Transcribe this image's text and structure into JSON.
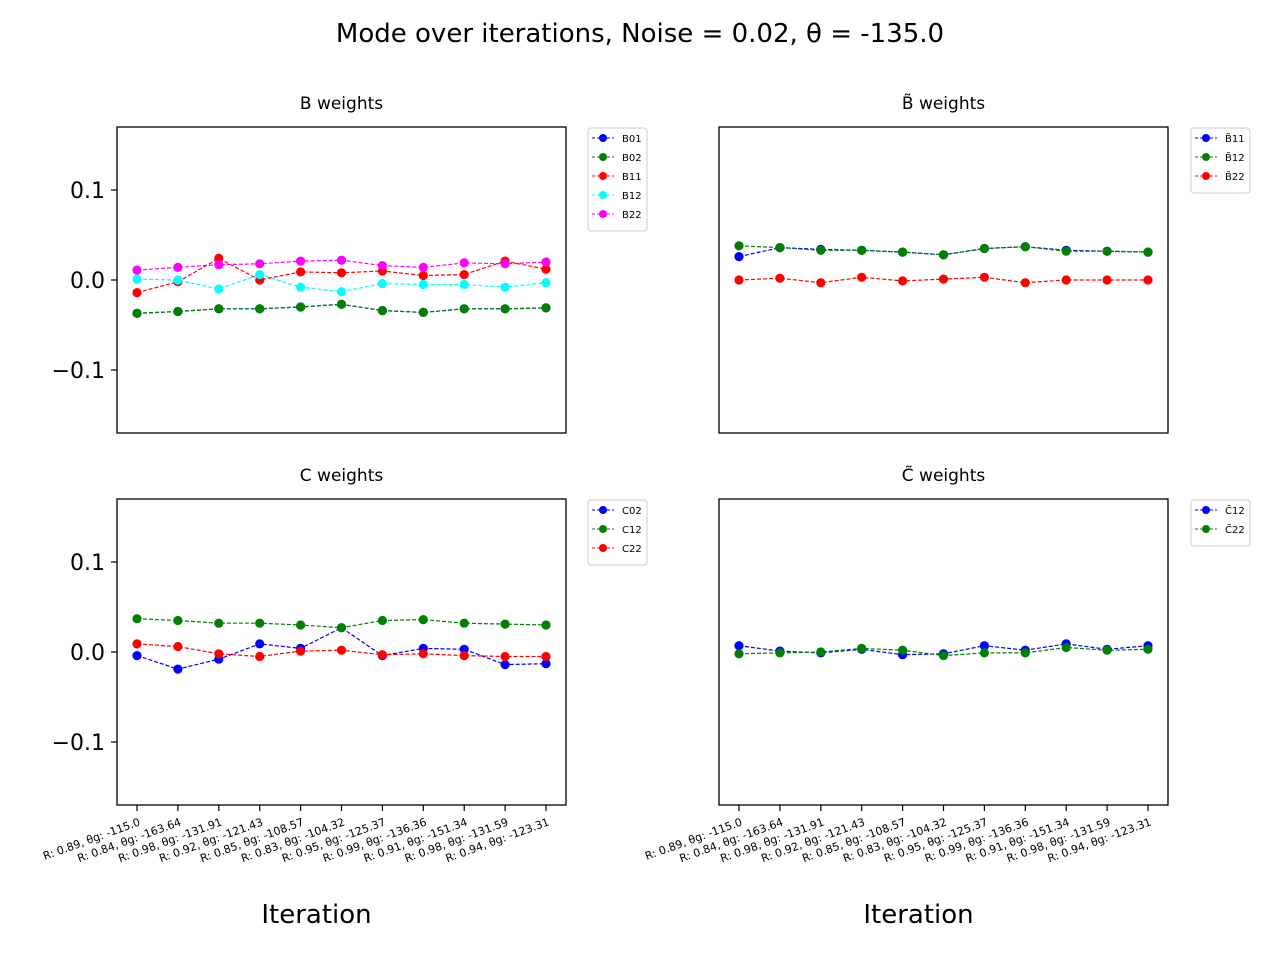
{
  "figure": {
    "title": "Mode over iterations, Noise = 0.02, θ = -135.0"
  },
  "chart_data": [
    {
      "type": "line",
      "title": "B weights",
      "xlabel": "",
      "ylabel": "",
      "ylim": [
        -0.17,
        0.17
      ],
      "yticks": [
        "0.1",
        "0.0",
        "−0.1"
      ],
      "x": [
        "R: 0.89, θg: -115.0",
        "R: 0.84, θg: -163.64",
        "R: 0.98, θg: -131.91",
        "R: 0.92, θg: -121.43",
        "R: 0.85, θg: -108.57",
        "R: 0.83, θg: -104.32",
        "R: 0.95, θg: -125.37",
        "R: 0.99, θg: -136.36",
        "R: 0.91, θg: -151.34",
        "R: 0.98, θg: -131.59",
        "R: 0.94, θg: -123.31"
      ],
      "legend": "outside-right",
      "series": [
        {
          "name": "B01",
          "color": "#0000ff",
          "values": [
            -0.037,
            -0.035,
            -0.032,
            -0.032,
            -0.03,
            -0.027,
            -0.034,
            -0.036,
            -0.032,
            -0.032,
            -0.031
          ]
        },
        {
          "name": "B02",
          "color": "#008000",
          "values": [
            -0.037,
            -0.035,
            -0.032,
            -0.032,
            -0.03,
            -0.027,
            -0.034,
            -0.036,
            -0.032,
            -0.032,
            -0.031
          ]
        },
        {
          "name": "B11",
          "color": "#ff0000",
          "values": [
            -0.014,
            -0.002,
            0.024,
            0.0,
            0.009,
            0.008,
            0.01,
            0.005,
            0.006,
            0.021,
            0.012
          ]
        },
        {
          "name": "B12",
          "color": "#00ffff",
          "values": [
            0.001,
            0.0,
            -0.01,
            0.006,
            -0.008,
            -0.013,
            -0.004,
            -0.005,
            -0.005,
            -0.008,
            -0.003
          ]
        },
        {
          "name": "B22",
          "color": "#ff00ff",
          "values": [
            0.011,
            0.014,
            0.017,
            0.018,
            0.021,
            0.022,
            0.016,
            0.014,
            0.019,
            0.018,
            0.02
          ]
        }
      ]
    },
    {
      "type": "line",
      "title": "B̃ weights",
      "xlabel": "",
      "ylabel": "",
      "ylim": [
        -0.17,
        0.17
      ],
      "yticks": [],
      "x": [
        "R: 0.89, θg: -115.0",
        "R: 0.84, θg: -163.64",
        "R: 0.98, θg: -131.91",
        "R: 0.92, θg: -121.43",
        "R: 0.85, θg: -108.57",
        "R: 0.83, θg: -104.32",
        "R: 0.95, θg: -125.37",
        "R: 0.99, θg: -136.36",
        "R: 0.91, θg: -151.34",
        "R: 0.98, θg: -131.59",
        "R: 0.94, θg: -123.31"
      ],
      "legend": "outside-right",
      "series": [
        {
          "name": "B̃11",
          "color": "#0000ff",
          "values": [
            0.026,
            0.036,
            0.034,
            0.033,
            0.031,
            0.028,
            0.035,
            0.037,
            0.033,
            0.032,
            0.031
          ]
        },
        {
          "name": "B̃12",
          "color": "#008000",
          "values": [
            0.038,
            0.036,
            0.033,
            0.033,
            0.031,
            0.028,
            0.035,
            0.037,
            0.032,
            0.032,
            0.031
          ]
        },
        {
          "name": "B̃22",
          "color": "#ff0000",
          "values": [
            0.0,
            0.002,
            -0.003,
            0.003,
            -0.001,
            0.001,
            0.003,
            -0.003,
            0.0,
            0.0,
            0.0
          ]
        }
      ]
    },
    {
      "type": "line",
      "title": "C weights",
      "xlabel": "Iteration",
      "ylabel": "",
      "ylim": [
        -0.17,
        0.17
      ],
      "yticks": [
        "0.1",
        "0.0",
        "−0.1"
      ],
      "x": [
        "R: 0.89, θg: -115.0",
        "R: 0.84, θg: -163.64",
        "R: 0.98, θg: -131.91",
        "R: 0.92, θg: -121.43",
        "R: 0.85, θg: -108.57",
        "R: 0.83, θg: -104.32",
        "R: 0.95, θg: -125.37",
        "R: 0.99, θg: -136.36",
        "R: 0.91, θg: -151.34",
        "R: 0.98, θg: -131.59",
        "R: 0.94, θg: -123.31"
      ],
      "legend": "outside-right",
      "series": [
        {
          "name": "C02",
          "color": "#0000ff",
          "values": [
            -0.004,
            -0.019,
            -0.008,
            0.009,
            0.004,
            0.027,
            -0.004,
            0.004,
            0.003,
            -0.014,
            -0.013
          ]
        },
        {
          "name": "C12",
          "color": "#008000",
          "values": [
            0.037,
            0.035,
            0.032,
            0.032,
            0.03,
            0.027,
            0.035,
            0.036,
            0.032,
            0.031,
            0.03
          ]
        },
        {
          "name": "C22",
          "color": "#ff0000",
          "values": [
            0.009,
            0.006,
            -0.002,
            -0.005,
            0.001,
            0.002,
            -0.003,
            -0.002,
            -0.004,
            -0.005,
            -0.005
          ]
        }
      ]
    },
    {
      "type": "line",
      "title": "C̃ weights",
      "xlabel": "Iteration",
      "ylabel": "",
      "ylim": [
        -0.17,
        0.17
      ],
      "yticks": [],
      "x": [
        "R: 0.89, θg: -115.0",
        "R: 0.84, θg: -163.64",
        "R: 0.98, θg: -131.91",
        "R: 0.92, θg: -121.43",
        "R: 0.85, θg: -108.57",
        "R: 0.83, θg: -104.32",
        "R: 0.95, θg: -125.37",
        "R: 0.99, θg: -136.36",
        "R: 0.91, θg: -151.34",
        "R: 0.98, θg: -131.59",
        "R: 0.94, θg: -123.31"
      ],
      "legend": "outside-right",
      "series": [
        {
          "name": "C̃12",
          "color": "#0000ff",
          "values": [
            0.007,
            0.001,
            -0.001,
            0.003,
            -0.003,
            -0.002,
            0.007,
            0.002,
            0.009,
            0.003,
            0.007
          ]
        },
        {
          "name": "C̃22",
          "color": "#008000",
          "values": [
            -0.002,
            -0.001,
            0.0,
            0.004,
            0.002,
            -0.004,
            -0.001,
            -0.001,
            0.005,
            0.002,
            0.003
          ]
        }
      ]
    }
  ]
}
